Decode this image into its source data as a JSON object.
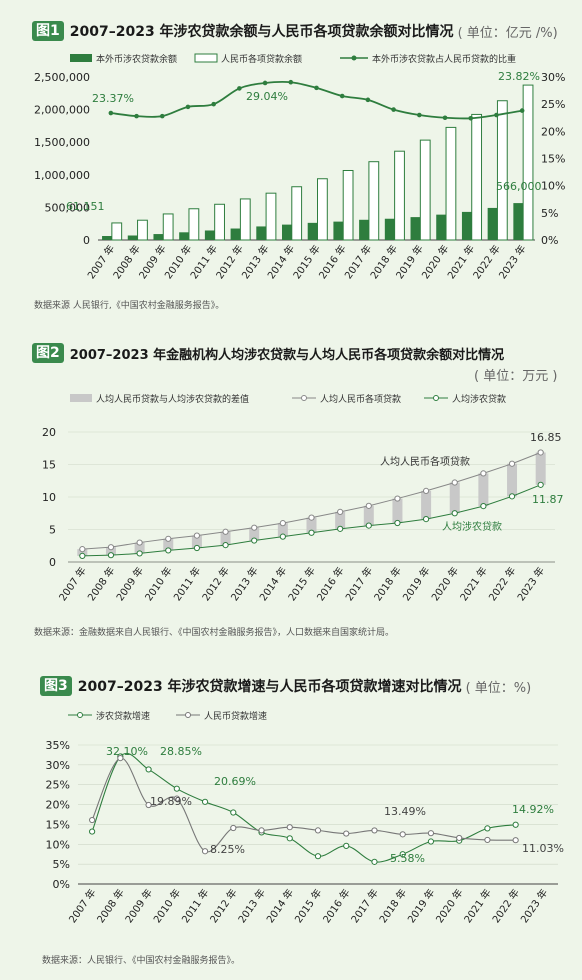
{
  "chart1": {
    "badge": "图1",
    "title": "2007–2023 年涉农贷款余额与人民币各项贷款余额对比情况",
    "unit": "( 单位：亿元 /%)",
    "source": "数据来源 人民银行,《中国农村金融服务报告》。",
    "legend": [
      "本外币涉农贷款余额",
      "人民币各项贷款余额",
      "本外币涉农贷款占人民币贷款的比重"
    ],
    "colors": {
      "bar_dark": "#2e7d3e",
      "bar_outline": "#2e7d3e",
      "line": "#2e7d3e"
    },
    "annotations": {
      "first_bar": "61,151",
      "last_bar": "566,000",
      "ratio_2007": "23.37%",
      "ratio_2014": "29.04%",
      "ratio_2023": "23.82%"
    },
    "chart_data": {
      "type": "bar",
      "categories": [
        "2007 年",
        "2008 年",
        "2009 年",
        "2010 年",
        "2011 年",
        "2012 年",
        "2013 年",
        "2014 年",
        "2015 年",
        "2016 年",
        "2017 年",
        "2018 年",
        "2019 年",
        "2020 年",
        "2021 年",
        "2022 年",
        "2023 年"
      ],
      "series": [
        {
          "name": "本外币涉农贷款余额",
          "type": "bar",
          "values": [
            61151,
            69000,
            91000,
            118000,
            146000,
            176000,
            208000,
            236000,
            263000,
            282000,
            310000,
            326000,
            351000,
            389000,
            431000,
            492000,
            566000
          ]
        },
        {
          "name": "人民币各项贷款余额",
          "type": "bar",
          "values": [
            261700,
            303500,
            399700,
            479200,
            547900,
            629900,
            718100,
            816800,
            939500,
            1066000,
            1201000,
            1362000,
            1532000,
            1727000,
            1926000,
            2136000,
            2376000
          ]
        },
        {
          "name": "本外币涉农贷款占人民币贷款的比重",
          "type": "line",
          "axis": "right",
          "values": [
            23.37,
            22.8,
            22.8,
            24.5,
            25.0,
            27.9,
            28.9,
            29.04,
            28.0,
            26.5,
            25.8,
            24.0,
            23.0,
            22.5,
            22.4,
            23.0,
            23.82
          ]
        }
      ],
      "y_left_ticks": [
        "0",
        "500,000",
        "1,000,000",
        "1,500,000",
        "2,000,000",
        "2,500,000"
      ],
      "y_left_range": [
        0,
        2500000
      ],
      "y_right_ticks": [
        "0%",
        "5%",
        "10%",
        "15%",
        "20%",
        "25%",
        "30%"
      ],
      "y_right_range": [
        0,
        30
      ],
      "legend_position": "top"
    }
  },
  "chart2": {
    "badge": "图2",
    "title": "2007–2023 年金融机构人均涉农贷款与人均人民币各项贷款余额对比情况",
    "unit": "( 单位：万元 )",
    "source": "数据来源：金融数据来自人民银行、《中国农村金融服务报告》，人口数据来自国家统计局。",
    "legend": [
      "人均人民币贷款与人均涉农贷款的差值",
      "人均人民币各项贷款",
      "人均涉农贷款"
    ],
    "colors": {
      "bar": "#c8c8c8",
      "line_gray": "#888888",
      "line_green": "#2e7d3e"
    },
    "annotations": {
      "label_rmb": "人均人民币各项贷款",
      "label_agri": "人均涉农贷款",
      "end_rmb": "16.85",
      "end_agri": "11.87"
    },
    "chart_data": {
      "type": "line",
      "categories": [
        "2007 年",
        "2008 年",
        "2009 年",
        "2010 年",
        "2011 年",
        "2012 年",
        "2013 年",
        "2014 年",
        "2015 年",
        "2016 年",
        "2017 年",
        "2018 年",
        "2019 年",
        "2020 年",
        "2021 年",
        "2022 年",
        "2023 年"
      ],
      "series": [
        {
          "name": "人均人民币各项贷款",
          "values": [
            1.98,
            2.28,
            2.99,
            3.57,
            4.06,
            4.65,
            5.28,
            5.98,
            6.83,
            7.71,
            8.64,
            9.76,
            10.94,
            12.23,
            13.63,
            15.12,
            16.85
          ]
        },
        {
          "name": "人均涉农贷款",
          "values": [
            0.94,
            1.05,
            1.32,
            1.78,
            2.15,
            2.6,
            3.3,
            3.9,
            4.5,
            5.1,
            5.6,
            6.0,
            6.6,
            7.5,
            8.6,
            10.1,
            11.87
          ]
        }
      ],
      "y_ticks": [
        "0",
        "5",
        "10",
        "15",
        "20"
      ],
      "y_range": [
        0,
        20
      ],
      "legend_position": "top"
    }
  },
  "chart3": {
    "badge": "图3",
    "title": "2007–2023 年涉农贷款增速与人民币各项贷款增速对比情况",
    "unit": "( 单位：%)",
    "source": "数据来源：人民银行、《中国农村金融服务报告》。",
    "legend": [
      "涉农贷款增速",
      "人民币贷款增速"
    ],
    "colors": {
      "line_green": "#2e7d3e",
      "line_gray": "#777777"
    },
    "annotations": {
      "a1": "32.10%",
      "a2": "28.85%",
      "a3": "19.89%",
      "a4": "20.69%",
      "a5": "8.25%",
      "a6": "13.49%",
      "a7": "5.58%",
      "a8": "14.92%",
      "a9": "11.03%"
    },
    "chart_data": {
      "type": "line",
      "categories": [
        "2007 年",
        "2008 年",
        "2009 年",
        "2010 年",
        "2011 年",
        "2012 年",
        "2013 年",
        "2014 年",
        "2015 年",
        "2016 年",
        "2017 年",
        "2018 年",
        "2019 年",
        "2020 年",
        "2021 年",
        "2022 年",
        "2023 年"
      ],
      "series": [
        {
          "name": "涉农贷款增速",
          "values": [
            13.2,
            32.1,
            28.85,
            24.0,
            20.69,
            18.0,
            13.0,
            11.5,
            7.0,
            9.6,
            5.58,
            7.5,
            10.7,
            10.9,
            14.0,
            14.92,
            null
          ]
        },
        {
          "name": "人民币贷款增速",
          "values": [
            16.1,
            31.7,
            19.89,
            21.5,
            8.25,
            14.1,
            13.5,
            14.3,
            13.5,
            12.7,
            13.49,
            12.5,
            12.8,
            11.6,
            11.1,
            11.03,
            null
          ]
        }
      ],
      "y_ticks": [
        "0%",
        "5%",
        "10%",
        "15%",
        "20%",
        "25%",
        "30%",
        "35%"
      ],
      "y_range": [
        0,
        35
      ],
      "legend_position": "top-left"
    }
  }
}
